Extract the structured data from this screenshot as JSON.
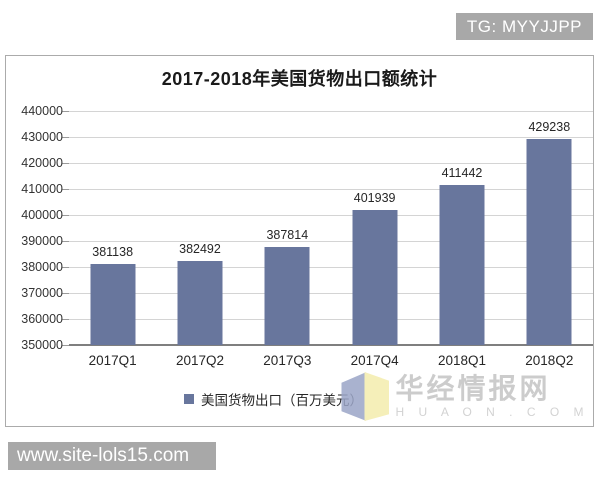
{
  "badge": {
    "text": "TG: MYYJJPP"
  },
  "site_bar": {
    "text": "www.site-lols15.com"
  },
  "brand_watermark": {
    "name": "华经情报网",
    "domain": "H U A O N . C O M",
    "logo": "open-book-logo"
  },
  "colors": {
    "bar": "#68769d",
    "badge_bg": "#a8a8a8",
    "gridline": "#d4d4d4",
    "axis": "#7f7f7f",
    "watermark_gray": "#c4c4c4",
    "logo_blue": "#9ba5c7",
    "logo_yellow": "#f4edad"
  },
  "chart_data": {
    "type": "bar",
    "title": "2017-2018年美国货物出口额统计",
    "categories": [
      "2017Q1",
      "2017Q2",
      "2017Q3",
      "2017Q4",
      "2018Q1",
      "2018Q2"
    ],
    "values": [
      381138,
      382492,
      387814,
      401939,
      411442,
      429238
    ],
    "series_name": "美国货物出口（百万美元）",
    "xlabel": "",
    "ylabel": "",
    "ylim": [
      350000,
      440000
    ],
    "ytick_step": 10000,
    "yticks": [
      "440000",
      "430000",
      "420000",
      "410000",
      "400000",
      "390000",
      "380000",
      "370000",
      "360000",
      "350000"
    ],
    "grid": true,
    "legend_position": "bottom",
    "bar_color": "#68769d"
  }
}
